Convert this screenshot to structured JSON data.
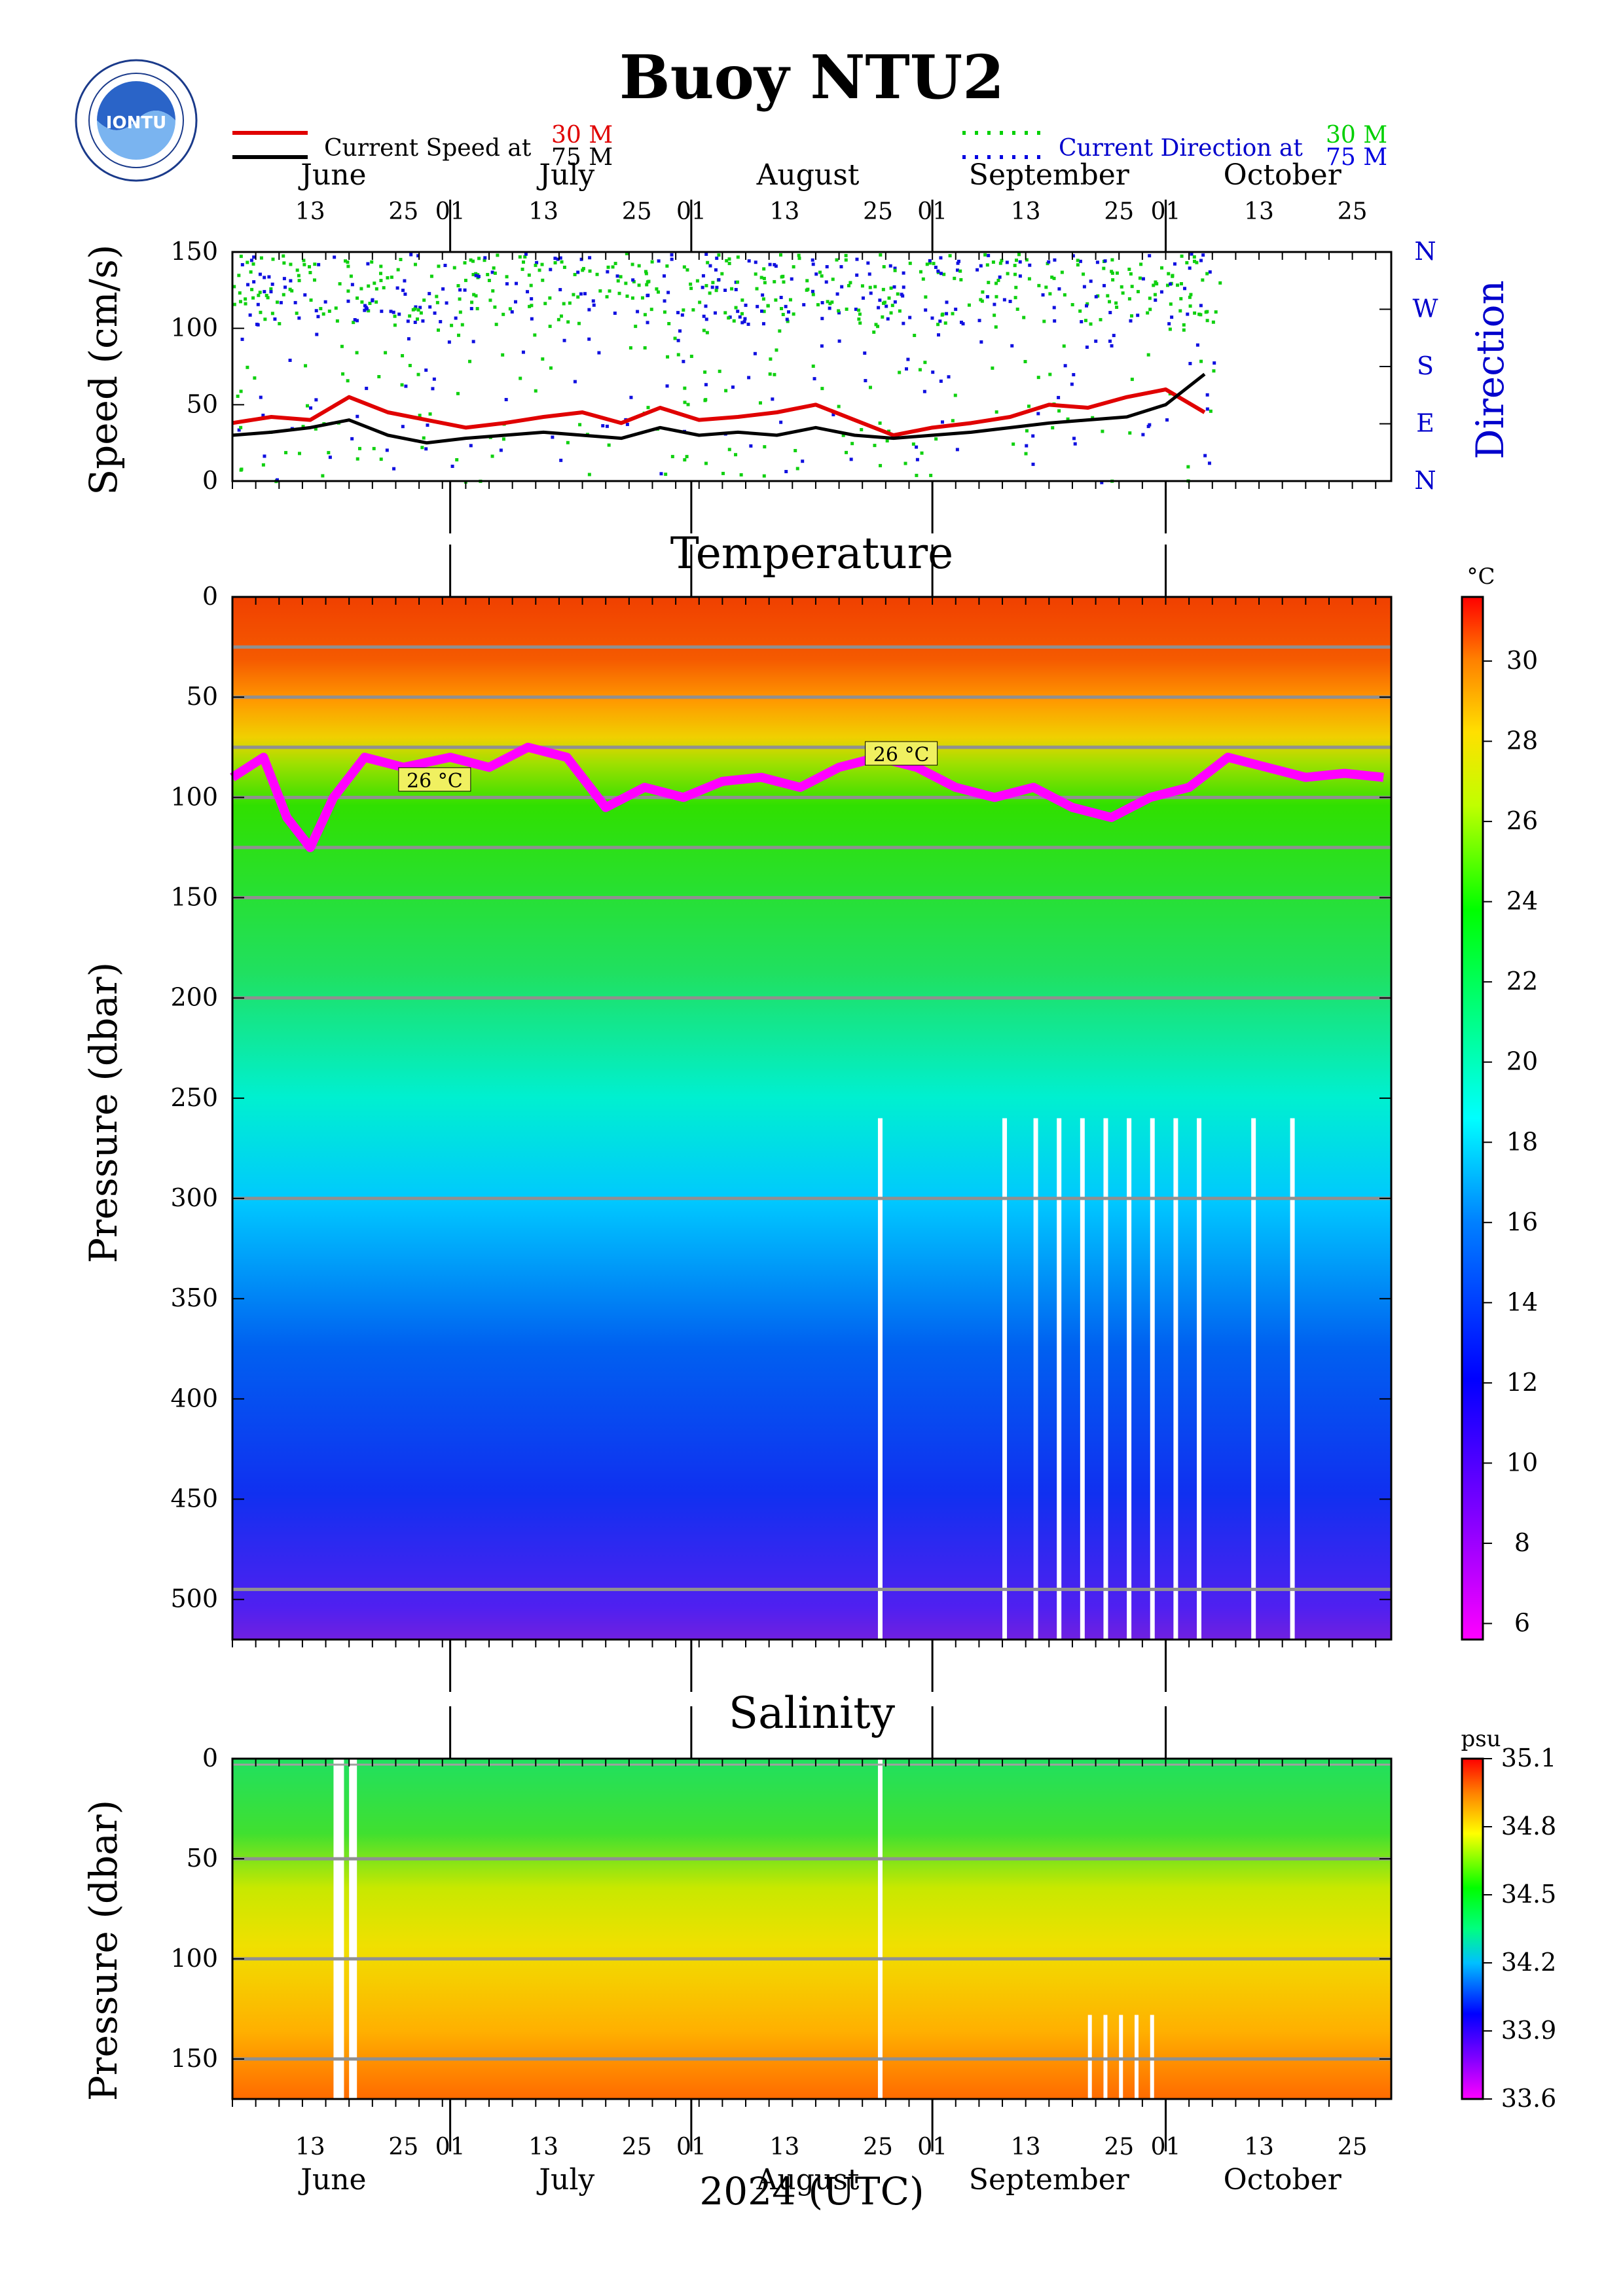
{
  "header": {
    "title": "Buoy NTU2",
    "logo_text": "IONTU",
    "legend_left": {
      "label": "Current Speed at",
      "entries": [
        {
          "depth": "30 M",
          "color": "#e00000"
        },
        {
          "depth": "75 M",
          "color": "#000000"
        }
      ]
    },
    "legend_right": {
      "label": "Current Direction at",
      "entries": [
        {
          "depth": "30 M",
          "color": "#00d000"
        },
        {
          "depth": "75 M",
          "color": "#0000e0"
        }
      ]
    },
    "accent_label_color": "#0000cc"
  },
  "time_axis": {
    "months": [
      "June",
      "July",
      "August",
      "September",
      "October"
    ],
    "day_ticks": [
      "13",
      "25",
      "01",
      "13",
      "25",
      "01",
      "13",
      "25",
      "01",
      "13",
      "25",
      "01",
      "13",
      "25"
    ],
    "xlabel": "2024 (UTC)"
  },
  "chart_data": [
    {
      "type": "line",
      "panel": "current",
      "ylabel": "Speed (cm/s)",
      "ylim": [
        0,
        150
      ],
      "yticks": [
        "0",
        "50",
        "100",
        "150"
      ],
      "right_label": "Direction",
      "direction_ticks": [
        "N",
        "E",
        "S",
        "W",
        "N"
      ],
      "series": [
        {
          "name": "30 M",
          "color": "#e00000",
          "kind": "speed",
          "x": [
            "2024-06-03",
            "2024-06-08",
            "2024-06-13",
            "2024-06-18",
            "2024-06-23",
            "2024-06-28",
            "2024-07-03",
            "2024-07-08",
            "2024-07-13",
            "2024-07-18",
            "2024-07-23",
            "2024-07-28",
            "2024-08-02",
            "2024-08-07",
            "2024-08-12",
            "2024-08-17",
            "2024-08-22",
            "2024-08-27",
            "2024-09-01",
            "2024-09-06",
            "2024-09-11",
            "2024-09-16",
            "2024-09-21",
            "2024-09-26",
            "2024-10-01",
            "2024-10-06"
          ],
          "values": [
            38,
            42,
            40,
            55,
            45,
            40,
            35,
            38,
            42,
            45,
            38,
            48,
            40,
            42,
            45,
            50,
            40,
            30,
            35,
            38,
            42,
            50,
            48,
            55,
            60,
            45
          ]
        },
        {
          "name": "75 M",
          "color": "#000000",
          "kind": "speed",
          "x": [
            "2024-06-03",
            "2024-06-08",
            "2024-06-13",
            "2024-06-18",
            "2024-06-23",
            "2024-06-28",
            "2024-07-03",
            "2024-07-08",
            "2024-07-13",
            "2024-07-18",
            "2024-07-23",
            "2024-07-28",
            "2024-08-02",
            "2024-08-07",
            "2024-08-12",
            "2024-08-17",
            "2024-08-22",
            "2024-08-27",
            "2024-09-01",
            "2024-09-06",
            "2024-09-11",
            "2024-09-16",
            "2024-09-21",
            "2024-09-26",
            "2024-10-01",
            "2024-10-06"
          ],
          "values": [
            30,
            32,
            35,
            40,
            30,
            25,
            28,
            30,
            32,
            30,
            28,
            35,
            30,
            32,
            30,
            35,
            30,
            28,
            30,
            32,
            35,
            38,
            40,
            42,
            50,
            70
          ]
        }
      ]
    },
    {
      "type": "heatmap",
      "panel": "temperature",
      "title": "Temperature",
      "ylabel": "Pressure (dbar)",
      "ylim": [
        520,
        0
      ],
      "yticks": [
        "0",
        "50",
        "100",
        "150",
        "200",
        "250",
        "300",
        "350",
        "400",
        "450",
        "500"
      ],
      "unit": "°C",
      "colorbar_ticks": [
        "6",
        "8",
        "10",
        "12",
        "14",
        "16",
        "18",
        "20",
        "22",
        "24",
        "26",
        "28",
        "30"
      ],
      "colorbar_range": [
        5.6,
        31.6
      ],
      "sensor_depths": [
        25,
        50,
        75,
        100,
        125,
        150,
        200,
        300,
        495
      ],
      "isotherm": {
        "label": "26 °C",
        "color": "#ff00ff",
        "x": [
          "2024-06-03",
          "2024-06-07",
          "2024-06-10",
          "2024-06-13",
          "2024-06-16",
          "2024-06-20",
          "2024-06-25",
          "2024-07-01",
          "2024-07-06",
          "2024-07-11",
          "2024-07-16",
          "2024-07-21",
          "2024-07-26",
          "2024-07-31",
          "2024-08-05",
          "2024-08-10",
          "2024-08-15",
          "2024-08-20",
          "2024-08-25",
          "2024-08-30",
          "2024-09-04",
          "2024-09-09",
          "2024-09-14",
          "2024-09-19",
          "2024-09-24",
          "2024-09-29",
          "2024-10-04",
          "2024-10-09",
          "2024-10-14",
          "2024-10-19",
          "2024-10-24",
          "2024-10-29"
        ],
        "values": [
          90,
          80,
          110,
          125,
          100,
          80,
          85,
          80,
          85,
          75,
          80,
          105,
          95,
          100,
          92,
          90,
          95,
          85,
          80,
          85,
          95,
          100,
          95,
          105,
          110,
          100,
          95,
          80,
          85,
          90,
          88,
          90
        ]
      },
      "isotherm_labels": [
        {
          "x": "2024-06-29",
          "text": "26 °C"
        },
        {
          "x": "2024-08-28",
          "text": "26 °C"
        }
      ]
    },
    {
      "type": "heatmap",
      "panel": "salinity",
      "title": "Salinity",
      "ylabel": "Pressure (dbar)",
      "ylim": [
        170,
        0
      ],
      "yticks": [
        "0",
        "50",
        "100",
        "150"
      ],
      "unit": "psu",
      "colorbar_ticks": [
        "33.6",
        "33.9",
        "34.2",
        "34.5",
        "34.8",
        "35.1"
      ],
      "colorbar_range": [
        33.6,
        35.1
      ],
      "sensor_depths": [
        50,
        100,
        150
      ]
    }
  ]
}
